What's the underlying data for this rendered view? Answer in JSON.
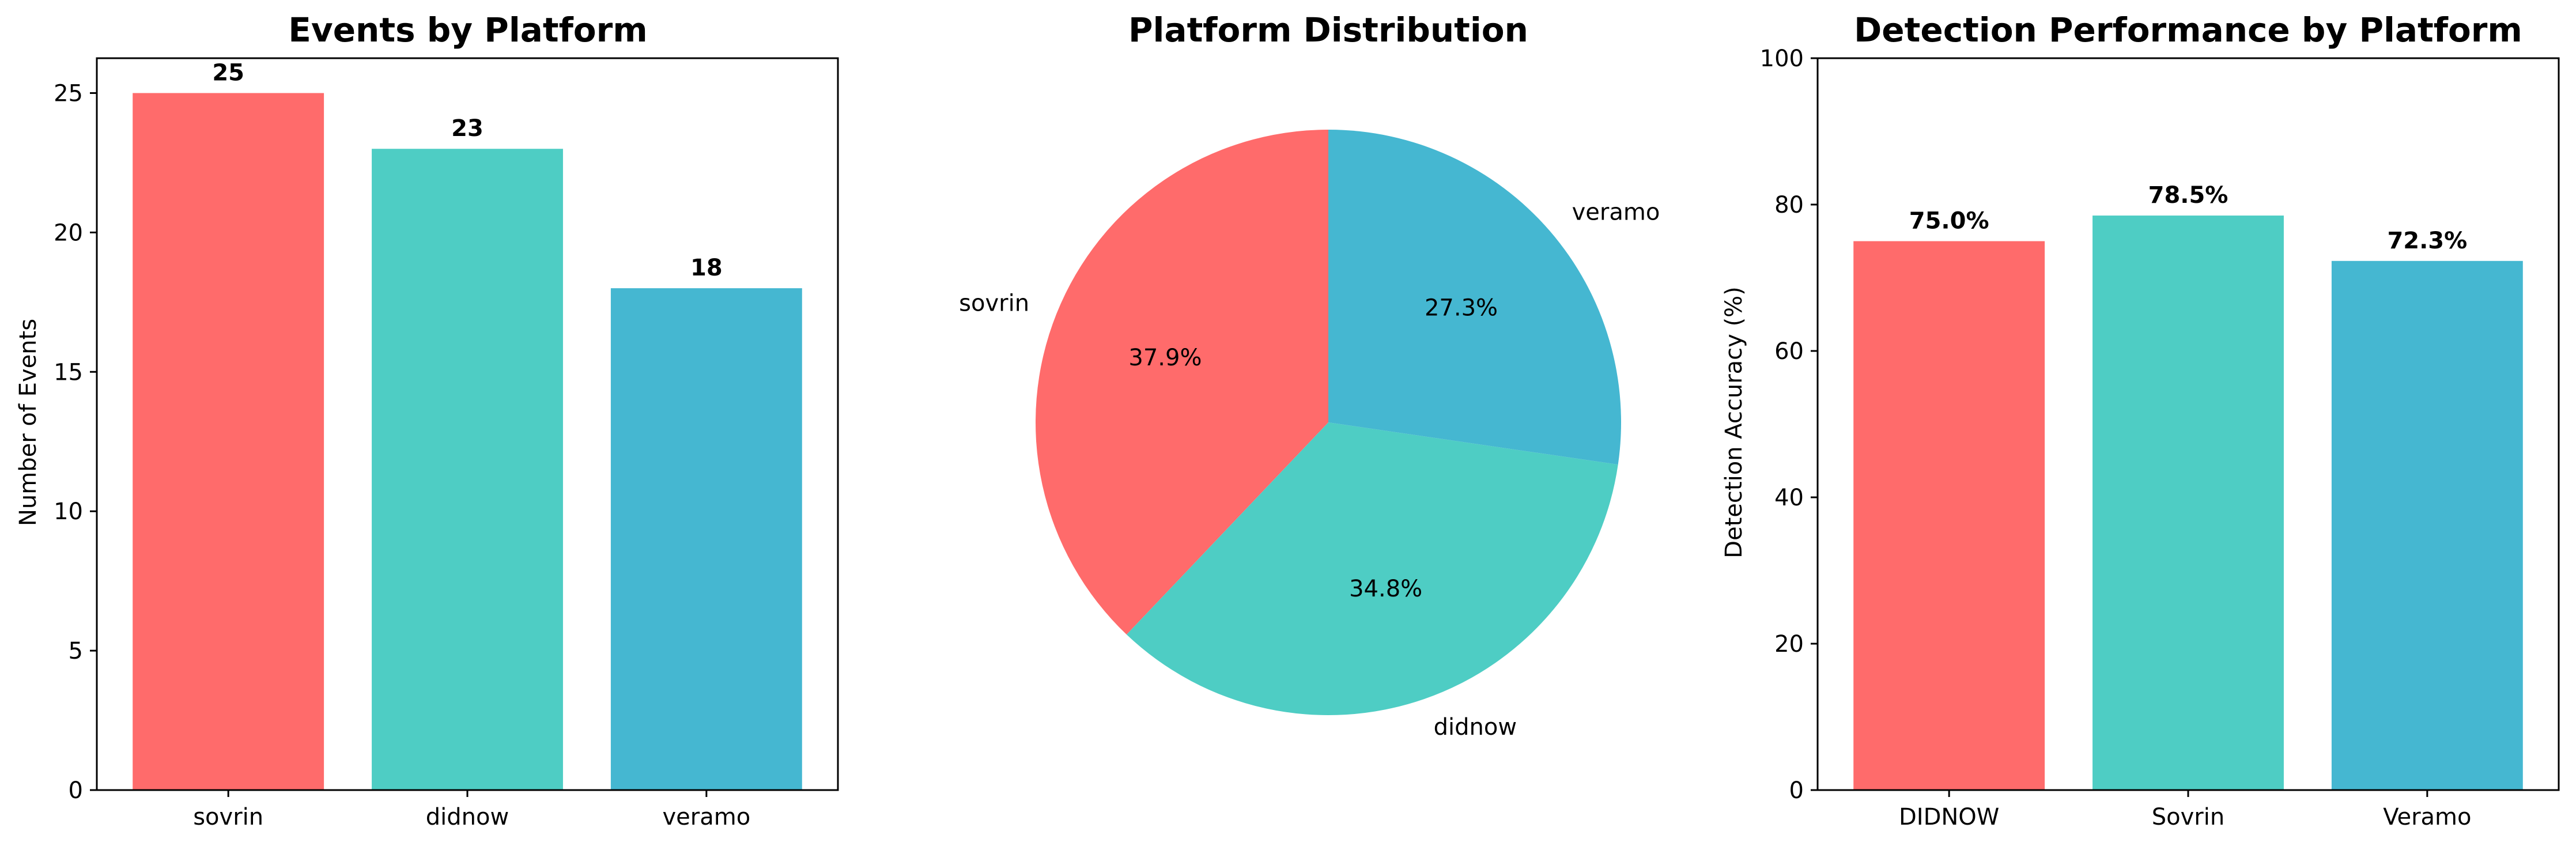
{
  "chart_data": [
    {
      "type": "bar",
      "title": "Events by Platform",
      "xlabel": "",
      "ylabel": "Number of Events",
      "categories": [
        "sovrin",
        "didnow",
        "veramo"
      ],
      "values": [
        25,
        23,
        18
      ],
      "value_labels": [
        "25",
        "23",
        "18"
      ],
      "ylim": [
        0,
        26.25
      ],
      "yticks": [
        0,
        5,
        10,
        15,
        20,
        25
      ],
      "colors": [
        "#ff6b6b",
        "#4ecdc4",
        "#45b7d1"
      ],
      "grid": false
    },
    {
      "type": "pie",
      "title": "Platform Distribution",
      "labels": [
        "sovrin",
        "didnow",
        "veramo"
      ],
      "values": [
        37.9,
        34.8,
        27.3
      ],
      "pct_labels": [
        "37.9%",
        "34.8%",
        "27.3%"
      ],
      "start_angle": 90,
      "direction": "counterclockwise",
      "colors": [
        "#ff6b6b",
        "#4ecdc4",
        "#45b7d1"
      ]
    },
    {
      "type": "bar",
      "title": "Detection Performance by Platform",
      "xlabel": "",
      "ylabel": "Detection Accuracy (%)",
      "categories": [
        "DIDNOW",
        "Sovrin",
        "Veramo"
      ],
      "values": [
        75.0,
        78.5,
        72.3
      ],
      "value_labels": [
        "75.0%",
        "78.5%",
        "72.3%"
      ],
      "ylim": [
        0,
        100
      ],
      "yticks": [
        0,
        20,
        40,
        60,
        80,
        100
      ],
      "colors": [
        "#ff6b6b",
        "#4ecdc4",
        "#45b7d1"
      ],
      "grid": false
    }
  ]
}
